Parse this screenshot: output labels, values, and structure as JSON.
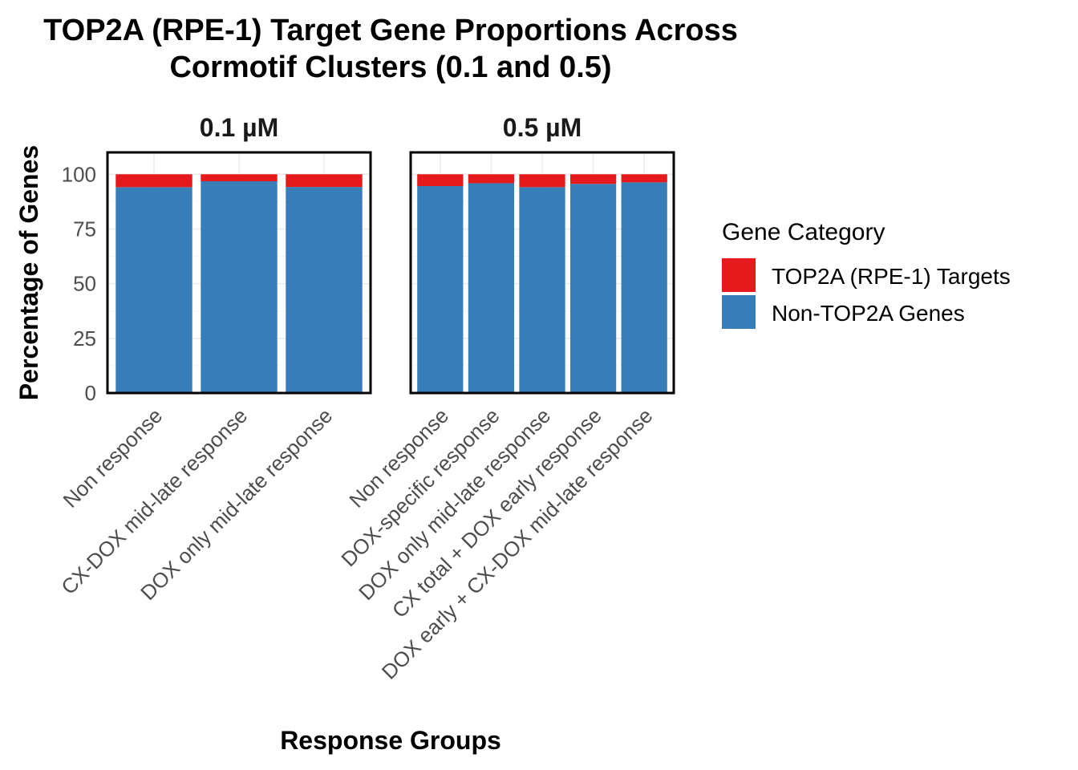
{
  "chart_data": {
    "type": "bar",
    "stacked": true,
    "title": "TOP2A (RPE-1) Target Gene Proportions Across\nCormotif Clusters (0.1 and 0.5)",
    "xlabel": "Response Groups",
    "ylabel": "Percentage of Genes",
    "ylim": [
      0,
      110
    ],
    "yticks": [
      0,
      25,
      50,
      75,
      100
    ],
    "grid": true,
    "legend": {
      "title": "Gene Category",
      "position": "right",
      "entries": [
        {
          "name": "TOP2A (RPE-1) Targets",
          "color": "#e41a1c"
        },
        {
          "name": "Non-TOP2A Genes",
          "color": "#377eb8"
        }
      ]
    },
    "facets": [
      {
        "label": "0.1 µM",
        "categories": [
          "Non response",
          "CX-DOX mid-late response",
          "DOX only mid-late response"
        ],
        "series": [
          {
            "name": "Non-TOP2A Genes",
            "values": [
              94.1,
              96.8,
              94.2
            ]
          },
          {
            "name": "TOP2A (RPE-1) Targets",
            "values": [
              5.9,
              3.2,
              5.8
            ]
          }
        ]
      },
      {
        "label": "0.5 µM",
        "categories": [
          "Non response",
          "DOX-specific response",
          "DOX only mid-late response",
          "CX total + DOX early response",
          "DOX early + CX-DOX mid-late response"
        ],
        "series": [
          {
            "name": "Non-TOP2A Genes",
            "values": [
              94.6,
              95.9,
              94.1,
              95.6,
              96.3
            ]
          },
          {
            "name": "TOP2A (RPE-1) Targets",
            "values": [
              5.4,
              4.1,
              5.9,
              4.4,
              3.7
            ]
          }
        ]
      }
    ]
  }
}
